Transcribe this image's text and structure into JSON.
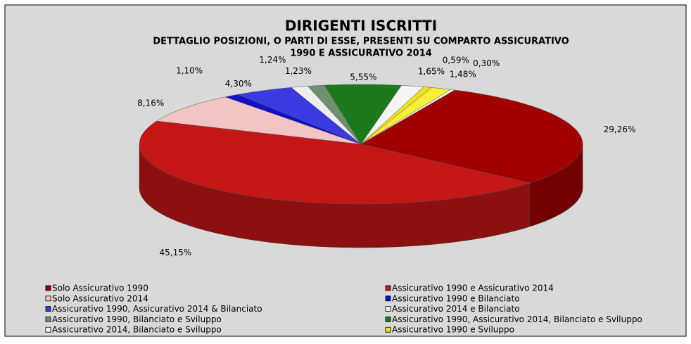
{
  "chart_data": {
    "type": "pie3d",
    "title": "DIRIGENTI ISCRITTI",
    "subtitle": [
      "DETTAGLIO POSIZIONI, O PARTI DI ESSE, PRESENTI SU COMPARTO ASSICURATIVO",
      "1990 E ASSICURATIVO 2014"
    ],
    "categories": [
      "Solo Assicurativo 1990",
      "Assicurativo 1990 e Assicurativo 2014",
      "Solo Assicurativo 2014",
      "Assicurativo 1990 e Bilanciato",
      "Assicurativo 1990, Assicurativo 2014 & Bilanciato",
      "Assicurativo 2014 e Bilanciato",
      "Assicurativo 1990, Bilanciato e Sviluppo",
      "Assicurativo 1990, Assicurativo 2014, Bilanciato e Sviluppo",
      "Assicurativo 2014, Bilanciato e Sviluppo",
      "Assicurativo 1990 e Sviluppo",
      null,
      null
    ],
    "values": [
      29.26,
      45.15,
      8.16,
      1.1,
      4.3,
      1.24,
      1.23,
      5.55,
      1.65,
      0.59,
      1.48,
      0.3
    ],
    "value_labels": [
      "29,26%",
      "45,15%",
      "8,16%",
      "1,10%",
      "4,30%",
      "1,24%",
      "1,23%",
      "5,55%",
      "1,65%",
      "0,59%",
      "1,48%",
      "0,30%"
    ],
    "colors": [
      "#a00000",
      "#c41616",
      "#f2c4c4",
      "#1010c8",
      "#3a3ae0",
      "#eeeeee",
      "#6f8f6f",
      "#1c7a1c",
      "#f4f4f4",
      "#f0e020",
      "#f7ef3a",
      "#fafafa"
    ]
  }
}
